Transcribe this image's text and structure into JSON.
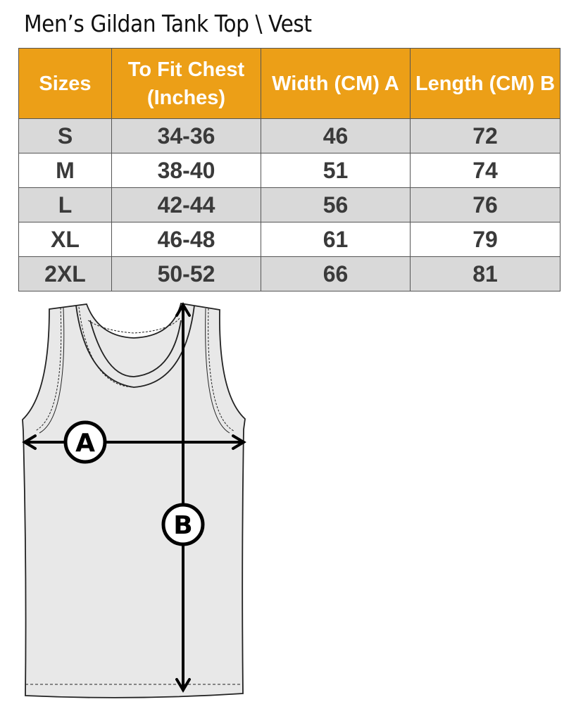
{
  "title": "Men’s Gildan Tank Top \\ Vest",
  "table": {
    "headers": [
      "Sizes",
      "To Fit Chest (Inches)",
      "Width (CM) A",
      "Length  (CM) B"
    ],
    "rows": [
      [
        "S",
        "34-36",
        "46",
        "72"
      ],
      [
        "M",
        "38-40",
        "51",
        "74"
      ],
      [
        "L",
        "42-44",
        "56",
        "76"
      ],
      [
        "XL",
        "46-48",
        "61",
        "79"
      ],
      [
        "2XL",
        "50-52",
        "66",
        "81"
      ]
    ]
  },
  "diagram": {
    "label_a": "A",
    "label_b": "B"
  },
  "colors": {
    "header": "#ec9f17",
    "stripe": "#d9d9d9",
    "garment": "#e8e8e8"
  }
}
